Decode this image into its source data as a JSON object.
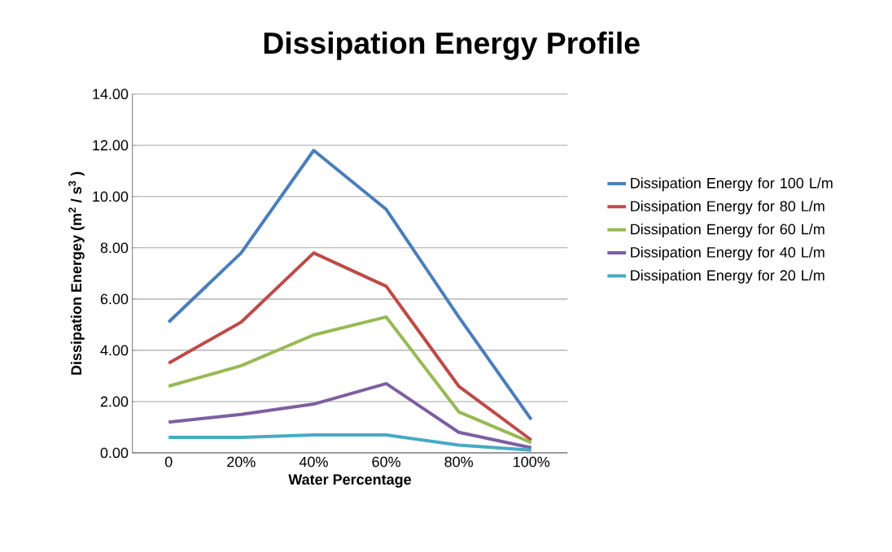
{
  "chart_data": {
    "type": "line",
    "title": "Dissipation Energy Profile",
    "xlabel": "Water Percentage",
    "ylabel": "Dissipation Energey (m$^{2}$ / s$^{3}$ )",
    "categories": [
      "0",
      "20%",
      "40%",
      "60%",
      "80%",
      "100%"
    ],
    "ylim": [
      0,
      14
    ],
    "yticks": [
      {
        "value": 0,
        "label": "0.00"
      },
      {
        "value": 2,
        "label": "2.00"
      },
      {
        "value": 4,
        "label": "4.00"
      },
      {
        "value": 6,
        "label": "6.00"
      },
      {
        "value": 8,
        "label": "8.00"
      },
      {
        "value": 10,
        "label": "10.00"
      },
      {
        "value": 12,
        "label": "12.00"
      },
      {
        "value": 14,
        "label": "14.00"
      }
    ],
    "grid": "y",
    "legend": "right",
    "marker": "none",
    "series": [
      {
        "name": "Dissipation Energy for 100 L/m",
        "color": "#4a7ebb",
        "values": [
          5.1,
          7.8,
          11.8,
          9.5,
          5.3,
          1.3
        ]
      },
      {
        "name": "Dissipation Energy for 80 L/m",
        "color": "#be4b48",
        "values": [
          3.5,
          5.1,
          7.8,
          6.5,
          2.6,
          0.5
        ]
      },
      {
        "name": "Dissipation Energy for 60 L/m",
        "color": "#98b954",
        "values": [
          2.6,
          3.4,
          4.6,
          5.3,
          1.6,
          0.4
        ]
      },
      {
        "name": "Dissipation Energy for 40 L/m",
        "color": "#7d5fa0",
        "values": [
          1.2,
          1.5,
          1.9,
          2.7,
          0.8,
          0.2
        ]
      },
      {
        "name": "Dissipation Energy for 20 L/m",
        "color": "#46aac5",
        "values": [
          0.6,
          0.6,
          0.7,
          0.7,
          0.3,
          0.1
        ]
      }
    ]
  }
}
